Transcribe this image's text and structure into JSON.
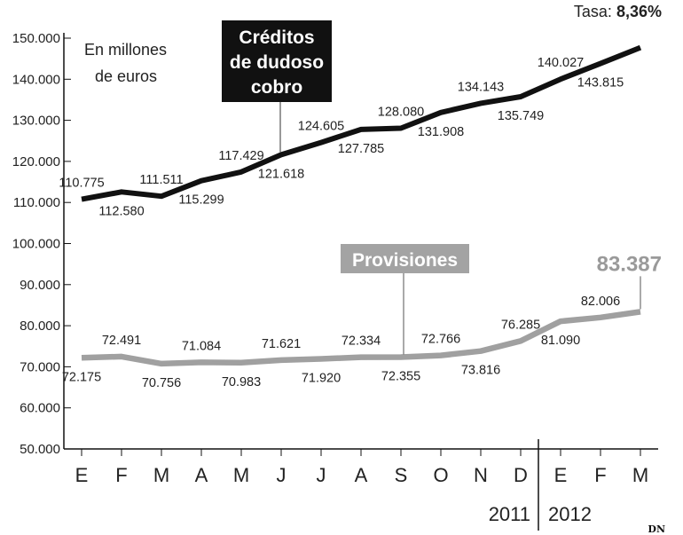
{
  "chart_data": {
    "type": "line",
    "categories": [
      "E",
      "F",
      "M",
      "A",
      "M",
      "J",
      "J",
      "A",
      "S",
      "O",
      "N",
      "D",
      "E",
      "F",
      "M"
    ],
    "years": [
      "2011",
      "2012"
    ],
    "ylim": [
      50000,
      150000
    ],
    "yticks": [
      "50.000",
      "60.000",
      "70.000",
      "80.000",
      "90.000",
      "100.000",
      "110.000",
      "120.000",
      "130.000",
      "140.000",
      "150.000"
    ],
    "unit_note": [
      "En millones",
      "de euros"
    ],
    "series": [
      {
        "name": "Créditos de dudoso cobro",
        "name_lines": [
          "Créditos",
          "de dudoso",
          "cobro"
        ],
        "color": "#111111",
        "values": [
          110775,
          112580,
          111511,
          115299,
          117429,
          121618,
          124605,
          127785,
          128080,
          131908,
          134143,
          135749,
          140027,
          143815,
          147700
        ],
        "labels": [
          "110.775",
          "112.580",
          "111.511",
          "115.299",
          "117.429",
          "121.618",
          "124.605",
          "127.785",
          "128.080",
          "131.908",
          "134.143",
          "135.749",
          "140.027",
          "143.815",
          ""
        ]
      },
      {
        "name": "Provisiones",
        "name_lines": [
          "Provisiones"
        ],
        "color": "#a0a0a0",
        "values": [
          72175,
          72491,
          70756,
          71084,
          70983,
          71621,
          71920,
          72334,
          72355,
          72766,
          73816,
          76285,
          81090,
          82006,
          83387
        ],
        "labels": [
          "72.175",
          "72.491",
          "70.756",
          "71.084",
          "70.983",
          "71.621",
          "71.920",
          "72.334",
          "72.355",
          "72.766",
          "73.816",
          "76.285",
          "81.090",
          "82.006",
          "83.387"
        ]
      }
    ],
    "rate_label": "Tasa:",
    "rate_value": "8,36%",
    "credit": "DN"
  }
}
